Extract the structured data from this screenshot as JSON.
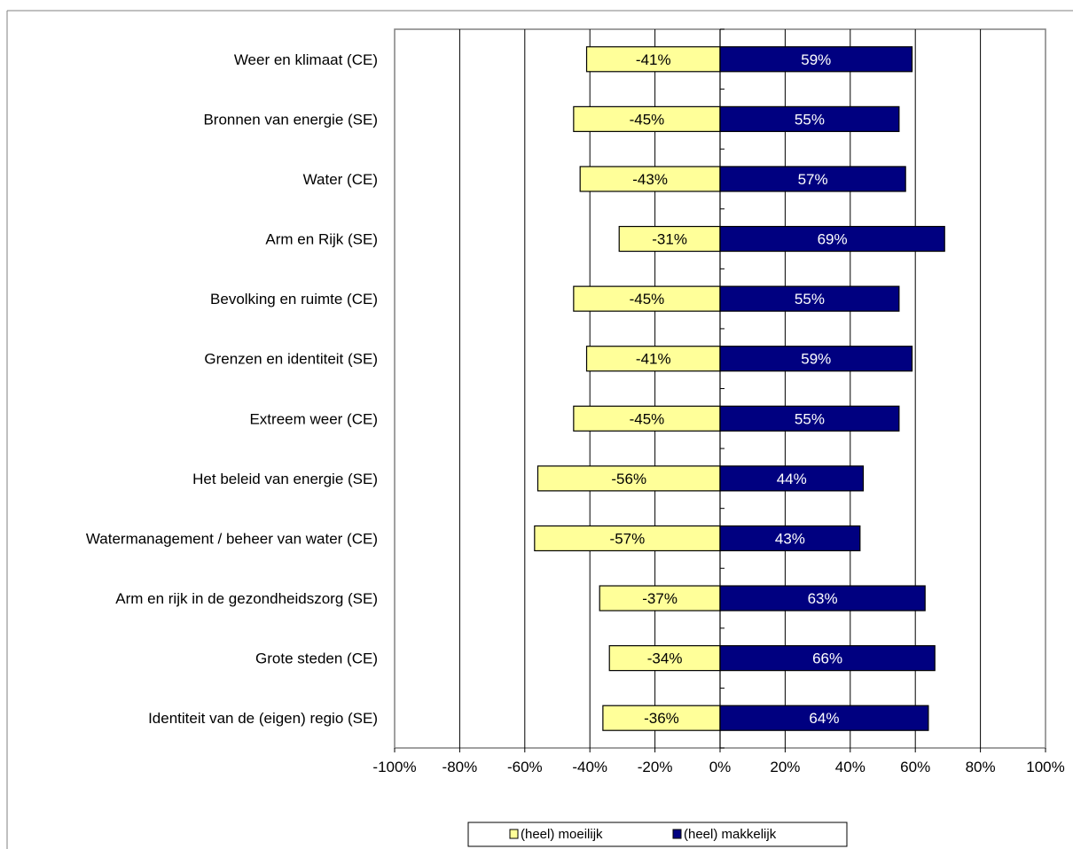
{
  "chart_data": {
    "type": "bar",
    "orientation": "horizontal",
    "stacked": "diverging",
    "categories": [
      "Weer en klimaat (CE)",
      "Bronnen van energie (SE)",
      "Water (CE)",
      "Arm en Rijk (SE)",
      "Bevolking en ruimte (CE)",
      "Grenzen en identiteit (SE)",
      "Extreem weer (CE)",
      "Het beleid van energie (SE)",
      "Watermanagement / beheer van water (CE)",
      "Arm en rijk in de gezondheidszorg (SE)",
      "Grote steden (CE)",
      "Identiteit van de (eigen) regio (SE)"
    ],
    "series": [
      {
        "name": "(heel) moeilijk",
        "color": "#FFFF99",
        "values": [
          -41,
          -45,
          -43,
          -31,
          -45,
          -41,
          -45,
          -56,
          -57,
          -37,
          -34,
          -36
        ],
        "labels": [
          "-41%",
          "-45%",
          "-43%",
          "-31%",
          "-45%",
          "-41%",
          "-45%",
          "-56%",
          "-57%",
          "-37%",
          "-34%",
          "-36%"
        ]
      },
      {
        "name": "(heel)  makkelijk",
        "color": "#000080",
        "values": [
          59,
          55,
          57,
          69,
          55,
          59,
          55,
          44,
          43,
          63,
          66,
          64
        ],
        "labels": [
          "59%",
          "55%",
          "57%",
          "69%",
          "55%",
          "59%",
          "55%",
          "44%",
          "43%",
          "63%",
          "66%",
          "64%"
        ]
      }
    ],
    "xlim": [
      -100,
      100
    ],
    "xticks": [
      -100,
      -80,
      -60,
      -40,
      -20,
      0,
      20,
      40,
      60,
      80,
      100
    ],
    "xtick_labels": [
      "-100%",
      "-80%",
      "-60%",
      "-40%",
      "-20%",
      "0%",
      "20%",
      "40%",
      "60%",
      "80%",
      "100%"
    ],
    "title": "",
    "xlabel": "",
    "ylabel": "",
    "grid": "vertical",
    "legend_position": "bottom"
  }
}
